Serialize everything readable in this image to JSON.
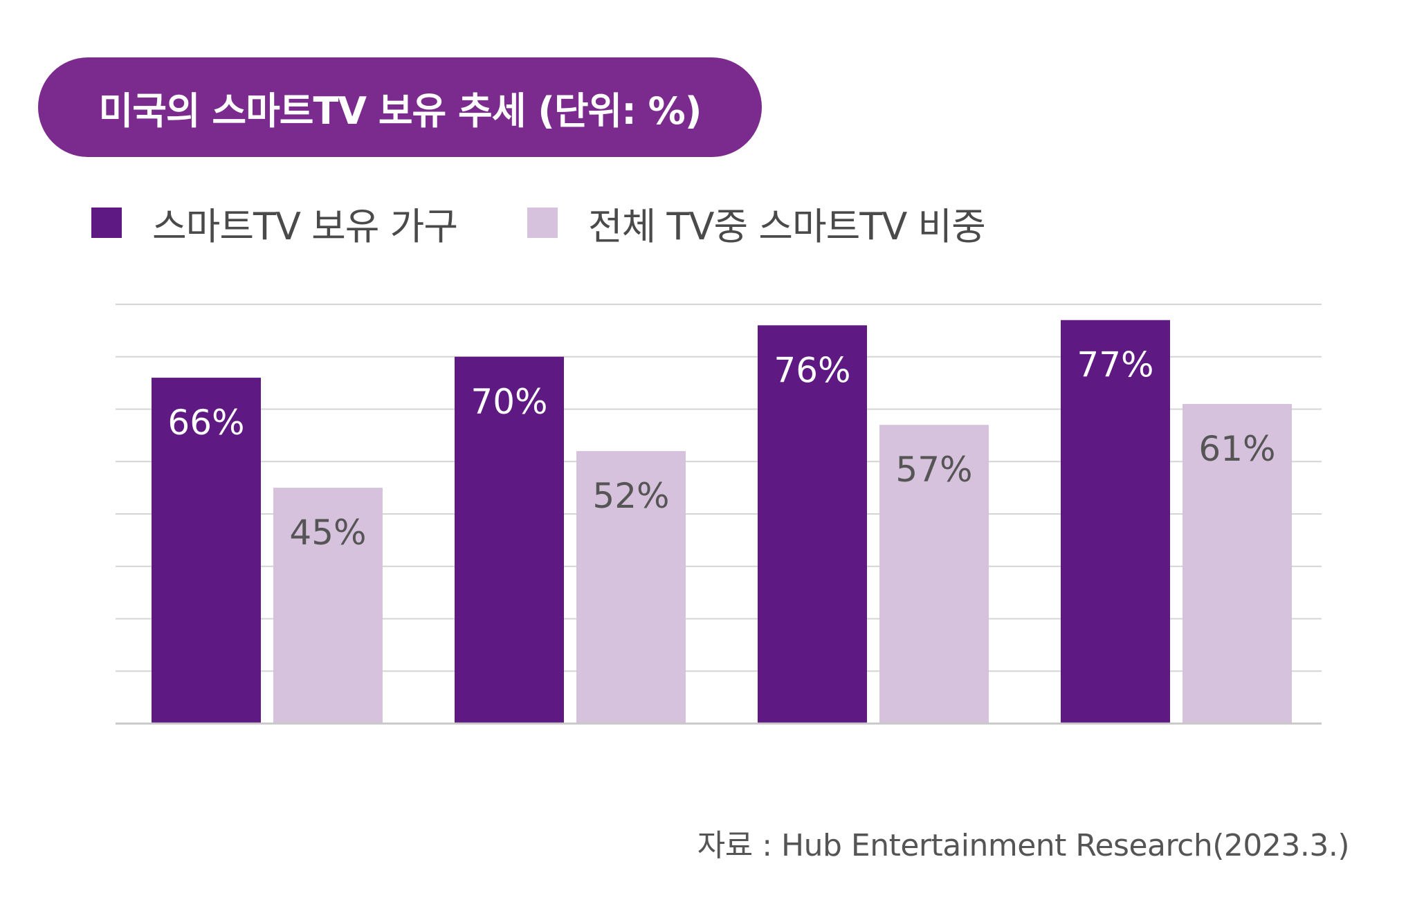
{
  "title": "미국의 스마트TV 보유 추세 (단위: %)",
  "colors": {
    "title_bg": "#7b2b8e",
    "series_1": "#5e1a82",
    "series_2": "#d6c2dc",
    "gridline": "#d4d4d4",
    "axis": "#c8c8c8",
    "label_on_dark": "#ffffff",
    "label_on_light": "#555555"
  },
  "legend": [
    {
      "label": "스마트TV 보유 가구",
      "color": "#5e1a82"
    },
    {
      "label": "전체 TV중 스마트TV 비중",
      "color": "#d6c2dc"
    }
  ],
  "source": "자료 : Hub Entertainment Research(2023.3.)",
  "chart_data": {
    "type": "bar",
    "categories": [
      "",
      "",
      "",
      ""
    ],
    "series": [
      {
        "name": "스마트TV 보유 가구",
        "values": [
          66,
          70,
          76,
          77
        ],
        "labels": [
          "66%",
          "70%",
          "76%",
          "77%"
        ]
      },
      {
        "name": "전체 TV중 스마트TV 비중",
        "values": [
          45,
          52,
          57,
          61
        ],
        "labels": [
          "45%",
          "52%",
          "57%",
          "61%"
        ]
      }
    ],
    "ylim": [
      0,
      80
    ],
    "grid": true,
    "legend_position": "top-left",
    "data_labels": true
  }
}
